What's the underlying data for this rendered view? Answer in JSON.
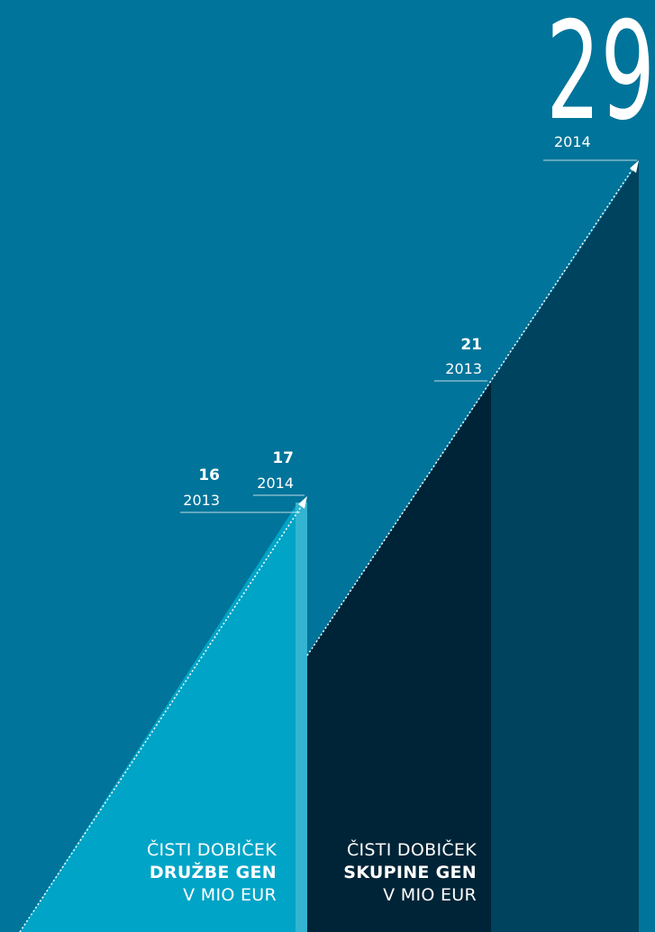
{
  "chart_data": [
    {
      "type": "bar",
      "categories": [
        "2013",
        "2014"
      ],
      "values": [
        16,
        17
      ],
      "caption": {
        "line1": "ČISTI DOBIČEK",
        "line2": "DRUŽBE GEN",
        "line3": "V MIO EUR"
      }
    },
    {
      "type": "bar",
      "categories": [
        "2013",
        "2014"
      ],
      "values": [
        21,
        29
      ],
      "caption": {
        "line1": "ČISTI DOBIČEK",
        "line2": "SKUPINE GEN",
        "line3": "V MIO EUR"
      }
    }
  ],
  "colors": {
    "background": "#00749a",
    "druzba_area": "#00a4c6",
    "druzba_bar_2014": "#33b4d1",
    "skupina_2013": "#002437",
    "skupina_2014": "#00435e",
    "line": "#ffffff"
  }
}
